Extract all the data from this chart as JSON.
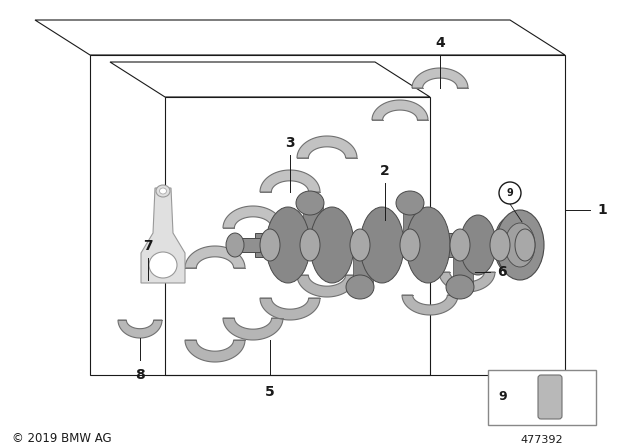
{
  "bg_color": "#ffffff",
  "line_color": "#1a1a1a",
  "shell_fill": "#b8b8b8",
  "shell_edge": "#666666",
  "crank_fill": "#909090",
  "crank_edge": "#4a4a4a",
  "rod_fill": "#d8d8d8",
  "rod_edge": "#888888",
  "copyright": "© 2019 BMW AG",
  "part_number": "477392",
  "label_fontsize": 10,
  "copyright_fontsize": 8.5,
  "pn_fontsize": 8
}
